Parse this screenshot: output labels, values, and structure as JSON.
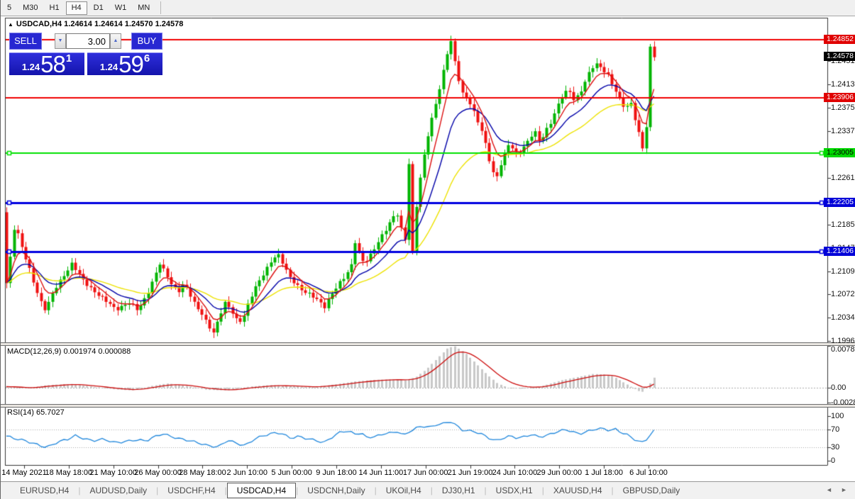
{
  "toolbar": {
    "timeframes": [
      "5",
      "M30",
      "H1",
      "H4",
      "D1",
      "W1",
      "MN"
    ],
    "active_timeframe": "H4"
  },
  "chart_header": {
    "collapse_icon": "▲",
    "title": "USDCAD,H4 1.24614 1.24614 1.24570 1.24578"
  },
  "trade_widget": {
    "sell_label": "SELL",
    "buy_label": "BUY",
    "volume": "3.00",
    "down_arrow": "▼",
    "up_arrow": "▲",
    "sell_price": {
      "small": "1.24",
      "big": "58",
      "sup": "1"
    },
    "buy_price": {
      "small": "1.24",
      "big": "59",
      "sup": "6"
    }
  },
  "price_scale": {
    "ticks": [
      {
        "label": "1.24510",
        "value": 1.2451
      },
      {
        "label": "1.24130",
        "value": 1.2413
      },
      {
        "label": "1.23750",
        "value": 1.2375
      },
      {
        "label": "1.23370",
        "value": 1.2337
      },
      {
        "label": "1.22610",
        "value": 1.2261
      },
      {
        "label": "1.21850",
        "value": 1.2185
      },
      {
        "label": "1.21470",
        "value": 1.2147
      },
      {
        "label": "1.21090",
        "value": 1.2109
      },
      {
        "label": "1.20720",
        "value": 1.2072
      },
      {
        "label": "1.20340",
        "value": 1.2034
      },
      {
        "label": "1.19960",
        "value": 1.1996
      }
    ],
    "badges": [
      {
        "label": "1.24852",
        "value": 1.24852,
        "bg": "#E00000",
        "fg": "#FFFFFF",
        "kind": "hline"
      },
      {
        "label": "1.24578",
        "value": 1.24578,
        "bg": "#000000",
        "fg": "#FFFFFF",
        "kind": "last-price"
      },
      {
        "label": "1.23906",
        "value": 1.23906,
        "bg": "#E00000",
        "fg": "#FFFFFF",
        "kind": "hline"
      },
      {
        "label": "1.23005",
        "value": 1.23005,
        "bg": "#00D800",
        "fg": "#000000",
        "kind": "hline"
      },
      {
        "label": "1.22205",
        "value": 1.22205,
        "bg": "#0000D8",
        "fg": "#FFFFFF",
        "kind": "hline"
      },
      {
        "label": "1.21406",
        "value": 1.21406,
        "bg": "#0000D8",
        "fg": "#FFFFFF",
        "kind": "hline"
      }
    ]
  },
  "macd_pane": {
    "label": "MACD(12,26,9) 0.001974 0.000088",
    "ticks": [
      {
        "label": "0.00782",
        "value": 0.00782
      },
      {
        "label": "0.00",
        "value": 0
      },
      {
        "label": "-0.00285",
        "value": -0.00285
      }
    ]
  },
  "rsi_pane": {
    "label": "RSI(14) 65.7027",
    "ticks": [
      {
        "label": "100",
        "value": 100
      },
      {
        "label": "70",
        "value": 70
      },
      {
        "label": "30",
        "value": 30
      },
      {
        "label": "0",
        "value": 0
      }
    ],
    "levels": [
      70,
      30
    ]
  },
  "time_axis": {
    "labels": [
      "14 May 2021",
      "18 May 18:00",
      "21 May 10:00",
      "26 May 00:00",
      "28 May 18:00",
      "2 Jun 10:00",
      "5 Jun 00:00",
      "9 Jun 18:00",
      "14 Jun 11:00",
      "17 Jun 00:00",
      "21 Jun 19:00",
      "24 Jun 10:00",
      "29 Jun 00:00",
      "1 Jul 18:00",
      "6 Jul 10:00"
    ]
  },
  "tab_bar": {
    "tabs": [
      "EURUSD,H4",
      "AUDUSD,Daily",
      "USDCHF,H4",
      "USDCAD,H4",
      "USDCNH,Daily",
      "UKOil,H4",
      "DJ30,H1",
      "USDX,H1",
      "XAUUSD,H4",
      "GBPUSD,Daily"
    ],
    "active": "USDCAD,H4",
    "separator": "|",
    "left_arrow": "◄",
    "right_arrow": "►"
  },
  "chart_data": {
    "type": "candlestick",
    "symbol": "USDCAD",
    "period": "H4",
    "ohlc_last": {
      "open": 1.24614,
      "high": 1.24614,
      "low": 1.2457,
      "close": 1.24578
    },
    "bars": 170,
    "first_open": 1.2205,
    "close_path": [
      [
        8,
        1.209
      ],
      [
        14,
        1.2135
      ],
      [
        20,
        1.2188
      ],
      [
        26,
        1.216
      ],
      [
        32,
        1.214
      ],
      [
        40,
        1.2115
      ],
      [
        48,
        1.2085
      ],
      [
        56,
        1.206
      ],
      [
        63,
        1.2045
      ],
      [
        72,
        1.207
      ],
      [
        80,
        1.2088
      ],
      [
        90,
        1.2105
      ],
      [
        100,
        1.2122
      ],
      [
        108,
        1.2108
      ],
      [
        118,
        1.209
      ],
      [
        130,
        1.2078
      ],
      [
        142,
        1.2068
      ],
      [
        152,
        1.2058
      ],
      [
        162,
        1.2045
      ],
      [
        172,
        1.2052
      ],
      [
        182,
        1.206
      ],
      [
        192,
        1.2048
      ],
      [
        200,
        1.2058
      ],
      [
        208,
        1.2075
      ],
      [
        216,
        1.2098
      ],
      [
        224,
        1.2122
      ],
      [
        232,
        1.2108
      ],
      [
        240,
        1.209
      ],
      [
        250,
        1.2075
      ],
      [
        258,
        1.2088
      ],
      [
        266,
        1.2072
      ],
      [
        274,
        1.2055
      ],
      [
        284,
        1.204
      ],
      [
        292,
        1.2022
      ],
      [
        300,
        1.2008
      ],
      [
        308,
        1.2035
      ],
      [
        316,
        1.2058
      ],
      [
        324,
        1.2048
      ],
      [
        332,
        1.2032
      ],
      [
        340,
        1.2028
      ],
      [
        350,
        1.206
      ],
      [
        360,
        1.2085
      ],
      [
        370,
        1.2105
      ],
      [
        380,
        1.2125
      ],
      [
        390,
        1.2138
      ],
      [
        398,
        1.212
      ],
      [
        406,
        1.21
      ],
      [
        416,
        1.2088
      ],
      [
        426,
        1.2078
      ],
      [
        436,
        1.2072
      ],
      [
        446,
        1.2062
      ],
      [
        456,
        1.205
      ],
      [
        466,
        1.2072
      ],
      [
        476,
        1.209
      ],
      [
        486,
        1.2102
      ],
      [
        494,
        1.2118
      ],
      [
        500,
        1.216
      ],
      [
        506,
        1.2135
      ],
      [
        512,
        1.2122
      ],
      [
        520,
        1.2135
      ],
      [
        528,
        1.215
      ],
      [
        536,
        1.2165
      ],
      [
        544,
        1.2178
      ],
      [
        552,
        1.2195
      ],
      [
        558,
        1.2205
      ],
      [
        564,
        1.218
      ],
      [
        570,
        1.2161
      ],
      [
        575,
        1.2285
      ],
      [
        580.4,
        1.214
      ],
      [
        585.8,
        1.2215
      ],
      [
        591,
        1.2258
      ],
      [
        600,
        1.232
      ],
      [
        607,
        1.2355
      ],
      [
        614,
        1.2388
      ],
      [
        621,
        1.242
      ],
      [
        628,
        1.246
      ],
      [
        634.4,
        1.2482
      ],
      [
        639,
        1.2452
      ],
      [
        645,
        1.242
      ],
      [
        650,
        1.2398
      ],
      [
        656,
        1.2392
      ],
      [
        662,
        1.2382
      ],
      [
        668,
        1.2365
      ],
      [
        674,
        1.2348
      ],
      [
        680,
        1.233
      ],
      [
        686,
        1.23
      ],
      [
        692,
        1.2272
      ],
      [
        698,
        1.2258
      ],
      [
        704,
        1.2282
      ],
      [
        710,
        1.23
      ],
      [
        716,
        1.2318
      ],
      [
        722,
        1.2308
      ],
      [
        728,
        1.2298
      ],
      [
        736,
        1.2308
      ],
      [
        744,
        1.2322
      ],
      [
        752,
        1.2338
      ],
      [
        760,
        1.232
      ],
      [
        768,
        1.2338
      ],
      [
        776,
        1.2352
      ],
      [
        784,
        1.2375
      ],
      [
        792,
        1.2395
      ],
      [
        800,
        1.2405
      ],
      [
        808,
        1.2388
      ],
      [
        816,
        1.2398
      ],
      [
        824,
        1.2418
      ],
      [
        832,
        1.2438
      ],
      [
        840,
        1.2445
      ],
      [
        848,
        1.2438
      ],
      [
        856,
        1.2428
      ],
      [
        864,
        1.2408
      ],
      [
        872,
        1.2388
      ],
      [
        880,
        1.2372
      ],
      [
        888,
        1.2382
      ],
      [
        894,
        1.2355
      ],
      [
        900,
        1.233
      ],
      [
        905,
        1.2308
      ],
      [
        909.8,
        1.2345
      ],
      [
        915.2,
        1.2472
      ],
      [
        920.6,
        1.2458
      ]
    ],
    "hlines": [
      {
        "value": 1.24852,
        "color": "#F00000",
        "width": 2,
        "handles": false
      },
      {
        "value": 1.23906,
        "color": "#F00000",
        "width": 2,
        "handles": false
      },
      {
        "value": 1.23005,
        "color": "#00E000",
        "width": 2,
        "handles": true
      },
      {
        "value": 1.22205,
        "color": "#0000E0",
        "width": 3,
        "handles": true
      },
      {
        "value": 1.21406,
        "color": "#0000E0",
        "width": 3,
        "handles": true
      }
    ],
    "moving_averages": [
      {
        "name": "fast",
        "color": "#DC1010",
        "period": 6
      },
      {
        "name": "mid",
        "color": "#0000A8",
        "period": 14
      },
      {
        "name": "slow",
        "color": "#EDE200",
        "period": 32
      }
    ],
    "macd_path": [
      [
        8,
        0.0002
      ],
      [
        40,
        -0.0001
      ],
      [
        60,
        0.0004
      ],
      [
        80,
        0.0006
      ],
      [
        100,
        0.0007
      ],
      [
        130,
        0.0002
      ],
      [
        160,
        -0.0003
      ],
      [
        185,
        -0.0005
      ],
      [
        215,
        0.0004
      ],
      [
        235,
        0.0008
      ],
      [
        260,
        0.0004
      ],
      [
        290,
        -0.0004
      ],
      [
        320,
        -0.0005
      ],
      [
        350,
        0.0002
      ],
      [
        380,
        0.0005
      ],
      [
        410,
        0.0003
      ],
      [
        440,
        0.0001
      ],
      [
        470,
        0.0006
      ],
      [
        500,
        0.0012
      ],
      [
        530,
        0.0015
      ],
      [
        555,
        0.0016
      ],
      [
        570,
        0.0014
      ],
      [
        585,
        0.002
      ],
      [
        600,
        0.0035
      ],
      [
        615,
        0.0055
      ],
      [
        630,
        0.0075
      ],
      [
        640,
        0.0078
      ],
      [
        655,
        0.0065
      ],
      [
        670,
        0.0045
      ],
      [
        685,
        0.0025
      ],
      [
        700,
        0.0008
      ],
      [
        715,
        0.0
      ],
      [
        730,
        -0.0002
      ],
      [
        745,
        -0.0001
      ],
      [
        760,
        0.0002
      ],
      [
        775,
        0.0008
      ],
      [
        790,
        0.0014
      ],
      [
        805,
        0.0018
      ],
      [
        820,
        0.0022
      ],
      [
        835,
        0.0026
      ],
      [
        850,
        0.0025
      ],
      [
        862,
        0.0022
      ],
      [
        875,
        0.0012
      ],
      [
        888,
        0.0002
      ],
      [
        898,
        -0.0006
      ],
      [
        906,
        -0.0008
      ],
      [
        912,
        0.0004
      ],
      [
        918,
        0.0012
      ],
      [
        921,
        0.002
      ]
    ],
    "rsi_path": [
      [
        8,
        55
      ],
      [
        20,
        48
      ],
      [
        35,
        44
      ],
      [
        50,
        38
      ],
      [
        65,
        30
      ],
      [
        80,
        40
      ],
      [
        95,
        48
      ],
      [
        105,
        57
      ],
      [
        115,
        52
      ],
      [
        130,
        44
      ],
      [
        145,
        47
      ],
      [
        160,
        41
      ],
      [
        175,
        44
      ],
      [
        190,
        46
      ],
      [
        205,
        43
      ],
      [
        215,
        52
      ],
      [
        228,
        62
      ],
      [
        240,
        55
      ],
      [
        252,
        48
      ],
      [
        265,
        44
      ],
      [
        280,
        40
      ],
      [
        295,
        34
      ],
      [
        308,
        31
      ],
      [
        320,
        45
      ],
      [
        333,
        38
      ],
      [
        345,
        35
      ],
      [
        358,
        50
      ],
      [
        370,
        55
      ],
      [
        383,
        60
      ],
      [
        395,
        62
      ],
      [
        408,
        52
      ],
      [
        420,
        55
      ],
      [
        432,
        48
      ],
      [
        445,
        44
      ],
      [
        455,
        40
      ],
      [
        468,
        55
      ],
      [
        480,
        66
      ],
      [
        490,
        65
      ],
      [
        500,
        58
      ],
      [
        508,
        62
      ],
      [
        515,
        52
      ],
      [
        525,
        55
      ],
      [
        535,
        58
      ],
      [
        545,
        63
      ],
      [
        552,
        60
      ],
      [
        560,
        65
      ],
      [
        568,
        55
      ],
      [
        578,
        68
      ],
      [
        588,
        76
      ],
      [
        598,
        78
      ],
      [
        606,
        74
      ],
      [
        615,
        80
      ],
      [
        625,
        82
      ],
      [
        635,
        88
      ],
      [
        642,
        80
      ],
      [
        650,
        70
      ],
      [
        658,
        68
      ],
      [
        668,
        64
      ],
      [
        678,
        58
      ],
      [
        688,
        50
      ],
      [
        698,
        45
      ],
      [
        708,
        52
      ],
      [
        718,
        56
      ],
      [
        728,
        50
      ],
      [
        738,
        52
      ],
      [
        748,
        58
      ],
      [
        758,
        54
      ],
      [
        768,
        57
      ],
      [
        778,
        62
      ],
      [
        788,
        66
      ],
      [
        798,
        68
      ],
      [
        806,
        64
      ],
      [
        815,
        60
      ],
      [
        825,
        66
      ],
      [
        835,
        70
      ],
      [
        842,
        72
      ],
      [
        850,
        70
      ],
      [
        858,
        66
      ],
      [
        866,
        70
      ],
      [
        874,
        64
      ],
      [
        882,
        60
      ],
      [
        890,
        52
      ],
      [
        898,
        44
      ],
      [
        906,
        40
      ],
      [
        912,
        50
      ],
      [
        918,
        62
      ],
      [
        921,
        66
      ]
    ],
    "colors": {
      "bull": "#00B400",
      "bear": "#EF1010",
      "macd_hist": "#C8C8C8",
      "macd_signal": "#CC0A0A",
      "rsi_line": "#1E86DC",
      "level_dotted": "#A8A8A8",
      "frame": "#333333"
    }
  }
}
